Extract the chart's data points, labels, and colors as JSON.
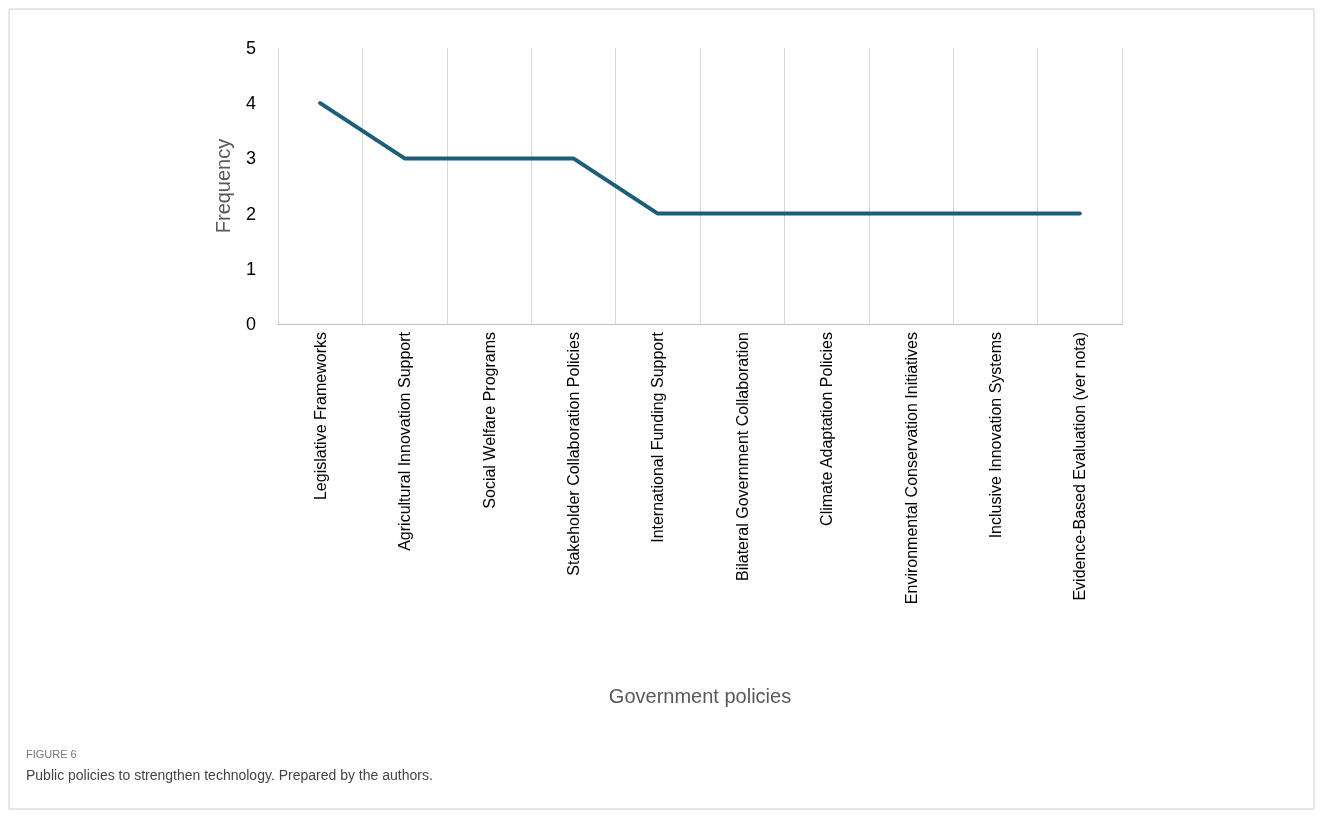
{
  "chart_data": {
    "type": "line",
    "xlabel": "Government policies",
    "ylabel": "Frequency",
    "categories": [
      "Legislative Frameworks",
      "Agricultural Innovation Support",
      "Social Welfare Programs",
      "Stakeholder Collaboration Policies",
      "International Funding Support",
      "Bilateral Government Collaboration",
      "Climate Adaptation Policies",
      "Environmental Conservation Initiatives",
      "Inclusive Innovation Systems",
      "Evidence-Based Evaluation (ver nota)"
    ],
    "series": [
      {
        "color": "#1b5e7b",
        "values": [
          4,
          3,
          3,
          3,
          2,
          2,
          2,
          2,
          2,
          2
        ]
      }
    ],
    "ylim": [
      0,
      5
    ],
    "yticks": [
      0,
      1,
      2,
      3,
      4,
      5
    ],
    "grid": "x",
    "marker": "none",
    "line_style": "solid",
    "annotations": [
      "FIGURE 6",
      "Public policies to strengthen technology. Prepared by the authors."
    ]
  }
}
